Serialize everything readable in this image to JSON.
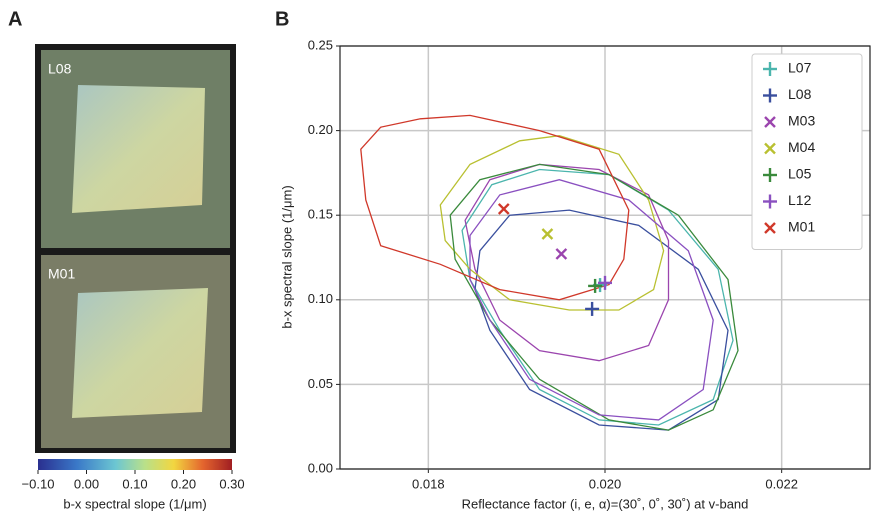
{
  "chart_data": [
    {
      "type": "image",
      "panel_label": "A",
      "images": [
        {
          "label": "L08"
        },
        {
          "label": "M01"
        }
      ],
      "colorbar": {
        "label": "b-x spectral slope (1/μm)",
        "xlim": [
          -0.1,
          0.3
        ],
        "xticks": [
          {
            "value": -0.1,
            "label": "−0.10"
          },
          {
            "value": 0,
            "label": "0.00"
          },
          {
            "value": 0.1,
            "label": "0.10"
          },
          {
            "value": 0.2,
            "label": "0.20"
          },
          {
            "value": 0.3,
            "label": "0.30"
          }
        ]
      }
    },
    {
      "type": "scatter",
      "panel_label": "B",
      "xlabel": "Reflectance factor (i, e, α)=(30˚, 0˚, 30˚) at v-band",
      "ylabel": "b-x spectral slope (1/μm)",
      "xlim": [
        0.017,
        0.023
      ],
      "xticks": [
        0.018,
        0.02,
        0.022
      ],
      "xtick_labels": [
        "0.018",
        "0.020",
        "0.022"
      ],
      "ylim": [
        0,
        0.25
      ],
      "yticks": [
        {
          "value": 0,
          "label": "0.00"
        },
        {
          "value": 0.05,
          "label": "0.05"
        },
        {
          "value": 0.1,
          "label": "0.10"
        },
        {
          "value": 0.15,
          "label": "0.15"
        },
        {
          "value": 0.2,
          "label": "0.20"
        },
        {
          "value": 0.25,
          "label": "0.25"
        }
      ],
      "grid": true,
      "legend": "upper right",
      "series": [
        {
          "name": "L07",
          "color": "#4bb5ad",
          "marker": "+",
          "x": [
            0.019944
          ],
          "y": [
            0.1087
          ],
          "contour_x": [
            0.018382,
            0.018719,
            0.019258,
            0.020045,
            0.020719,
            0.021281,
            0.021449,
            0.021225,
            0.020607,
            0.019933,
            0.019258,
            0.018809,
            0.018472
          ],
          "contour_y": [
            0.141,
            0.168,
            0.177,
            0.174,
            0.153,
            0.118,
            0.076,
            0.041,
            0.026,
            0.029,
            0.047,
            0.082,
            0.112
          ]
        },
        {
          "name": "L08",
          "color": "#3a4f9e",
          "marker": "+",
          "x": [
            0.019854
          ],
          "y": [
            0.0946
          ],
          "contour_x": [
            0.018584,
            0.018921,
            0.019596,
            0.020382,
            0.021056,
            0.021393,
            0.021281,
            0.020719,
            0.019933,
            0.019146,
            0.018697,
            0.018528
          ],
          "contour_y": [
            0.129,
            0.15,
            0.153,
            0.144,
            0.118,
            0.082,
            0.041,
            0.023,
            0.026,
            0.047,
            0.082,
            0.106
          ]
        },
        {
          "name": "M03",
          "color": "#9b45ae",
          "marker": "x",
          "x": [
            0.019506
          ],
          "y": [
            0.1271
          ],
          "contour_x": [
            0.018416,
            0.018697,
            0.019258,
            0.019933,
            0.020494,
            0.020719,
            0.020719,
            0.020494,
            0.019933,
            0.019258,
            0.018809,
            0.018528
          ],
          "contour_y": [
            0.147,
            0.171,
            0.18,
            0.177,
            0.162,
            0.135,
            0.1,
            0.073,
            0.064,
            0.07,
            0.088,
            0.118
          ]
        },
        {
          "name": "M04",
          "color": "#b9c031",
          "marker": "x",
          "x": [
            0.019348
          ],
          "y": [
            0.1389
          ],
          "contour_x": [
            0.018135,
            0.018472,
            0.019034,
            0.019483,
            0.020157,
            0.020494,
            0.020663,
            0.02055,
            0.020157,
            0.019596,
            0.018921,
            0.018472,
            0.018191
          ],
          "contour_y": [
            0.156,
            0.18,
            0.194,
            0.197,
            0.186,
            0.159,
            0.129,
            0.106,
            0.094,
            0.094,
            0.1,
            0.118,
            0.135
          ]
        },
        {
          "name": "L05",
          "color": "#3a8a3c",
          "marker": "+",
          "x": [
            0.019888
          ],
          "y": [
            0.1082
          ],
          "contour_x": [
            0.018247,
            0.018584,
            0.019258,
            0.020045,
            0.020831,
            0.021393,
            0.021506,
            0.021225,
            0.020719,
            0.020045,
            0.019258,
            0.018697,
            0.018303
          ],
          "contour_y": [
            0.15,
            0.171,
            0.18,
            0.174,
            0.15,
            0.112,
            0.07,
            0.035,
            0.023,
            0.029,
            0.053,
            0.088,
            0.124
          ]
        },
        {
          "name": "L12",
          "color": "#8a50c0",
          "marker": "+",
          "x": [
            0.02
          ],
          "y": [
            0.11
          ],
          "contour_x": [
            0.018472,
            0.018809,
            0.019483,
            0.02027,
            0.020943,
            0.021225,
            0.021112,
            0.020607,
            0.019933,
            0.019146,
            0.018697,
            0.018472
          ],
          "contour_y": [
            0.138,
            0.162,
            0.171,
            0.159,
            0.129,
            0.088,
            0.047,
            0.029,
            0.032,
            0.053,
            0.088,
            0.112
          ]
        },
        {
          "name": "M01",
          "color": "#d0382a",
          "marker": "x",
          "x": [
            0.018854
          ],
          "y": [
            0.1537
          ],
          "contour_x": [
            0.017236,
            0.017461,
            0.01791,
            0.018472,
            0.019258,
            0.019933,
            0.02027,
            0.020213,
            0.020045,
            0.019483,
            0.018809,
            0.018135,
            0.017461,
            0.017292
          ],
          "contour_y": [
            0.189,
            0.202,
            0.207,
            0.209,
            0.2,
            0.189,
            0.153,
            0.124,
            0.109,
            0.1,
            0.106,
            0.121,
            0.132,
            0.159
          ]
        }
      ]
    }
  ]
}
